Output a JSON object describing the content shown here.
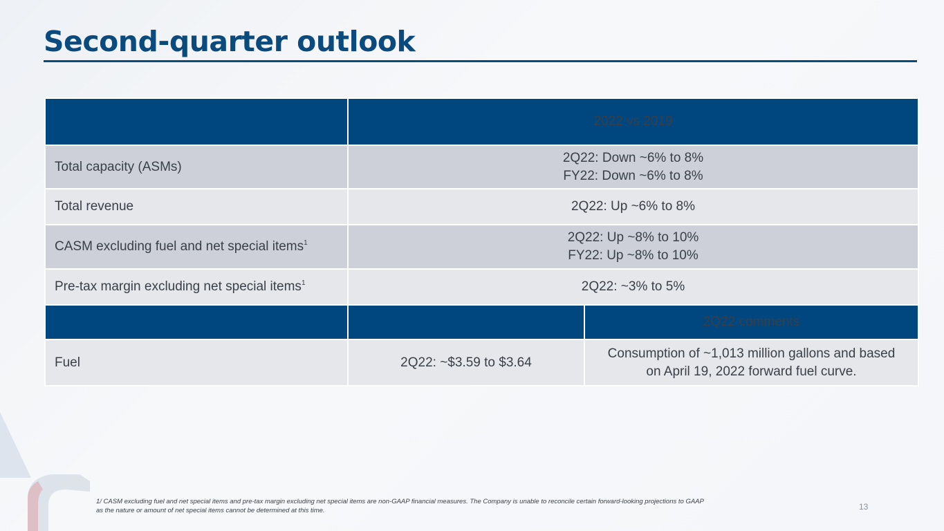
{
  "slide": {
    "title": "Second-quarter outlook",
    "page_number": "13"
  },
  "table": {
    "header_label": "2022 vs 2019",
    "rows": [
      {
        "label": "Total capacity (ASMs)",
        "footnote_mark": "",
        "value_lines": [
          "2Q22:  Down ~6% to 8%",
          "FY22: Down ~6% to 8%"
        ]
      },
      {
        "label": "Total revenue",
        "footnote_mark": "",
        "value_lines": [
          "2Q22:  Up ~6% to 8%"
        ]
      },
      {
        "label": "CASM excluding fuel and net special items",
        "footnote_mark": "1",
        "value_lines": [
          "2Q22:  Up ~8% to 10%",
          "FY22:  Up ~8% to 10%"
        ]
      },
      {
        "label": "Pre-tax margin excluding net special items",
        "footnote_mark": "1",
        "value_lines": [
          "2Q22:  ~3% to 5%"
        ]
      }
    ],
    "comments_header": "2Q22 comments",
    "fuel": {
      "label": "Fuel",
      "value": "2Q22: ~$3.59 to $3.64",
      "comment_lines": [
        "Consumption of ~1,013 million gallons and based",
        "on April 19, 2022 forward fuel curve."
      ]
    }
  },
  "footnote": {
    "line1": "1/ CASM excluding fuel and net special items and pre-tax margin excluding net special items are non-GAAP financial measures. The Company is unable to reconcile certain forward-looking projections to GAAP",
    "line2": "as the nature or amount of net special items cannot be determined at this time."
  },
  "colors": {
    "primary": "#00467f",
    "title": "#0b4a7d",
    "row_dark": "#cdd0d8",
    "row_light": "#e6e7eb"
  },
  "icons": {
    "logo": "flight-symbol-logo"
  }
}
